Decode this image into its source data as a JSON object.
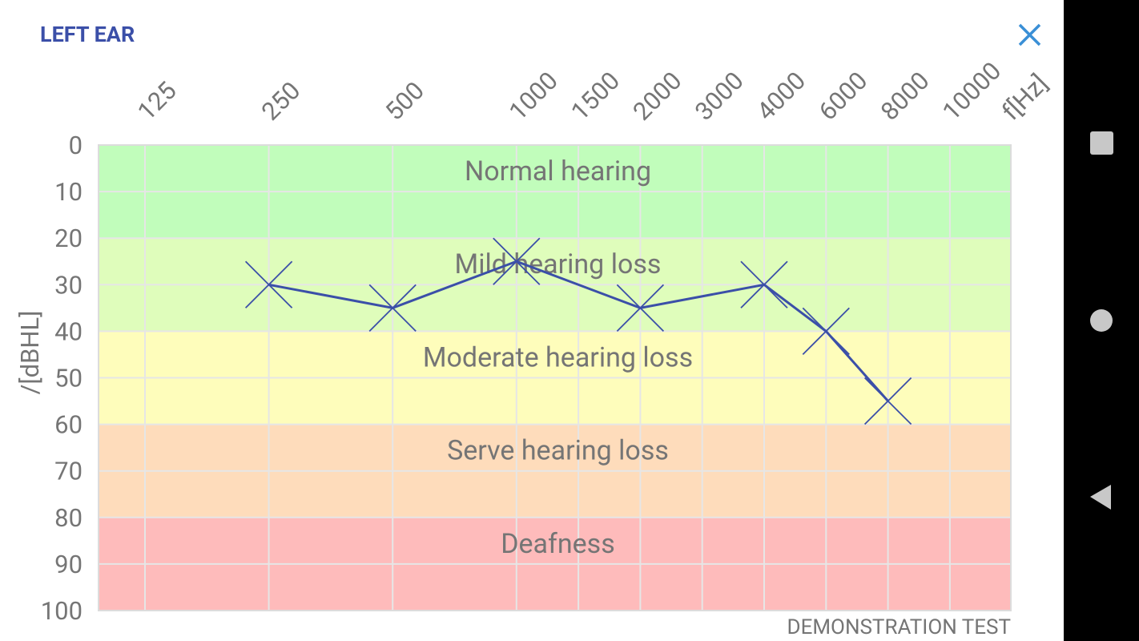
{
  "header": {
    "title": "LEFT EAR"
  },
  "chart_data": {
    "type": "audiogram",
    "x_label": "f[Hz]",
    "y_label": "/[dBHL]",
    "categories": [
      125,
      250,
      500,
      1000,
      1500,
      2000,
      3000,
      4000,
      6000,
      8000,
      10000
    ],
    "ylim": [
      0,
      100
    ],
    "y_inverted": true,
    "yticks": [
      0,
      10,
      20,
      30,
      40,
      50,
      60,
      70,
      80,
      90,
      100
    ],
    "grid": true,
    "bands": [
      {
        "name": "Normal hearing",
        "from": 0,
        "to": 20,
        "color": "#c1fdbb"
      },
      {
        "name": "Mild hearing loss",
        "from": 20,
        "to": 40,
        "color": "#dffdbb"
      },
      {
        "name": "Moderate hearing loss",
        "from": 40,
        "to": 60,
        "color": "#fefdbb"
      },
      {
        "name": "Serve hearing loss",
        "from": 60,
        "to": 80,
        "color": "#fedcbb"
      },
      {
        "name": "Deafness",
        "from": 80,
        "to": 100,
        "color": "#febbbb"
      }
    ],
    "series": [
      {
        "color": "#3b4fa8",
        "x": [
          250,
          500,
          1000,
          2000,
          4000,
          6000,
          8000
        ],
        "values": [
          30,
          35,
          25,
          35,
          30,
          40,
          55
        ]
      }
    ],
    "note": "DEMONSTRATION TEST"
  }
}
